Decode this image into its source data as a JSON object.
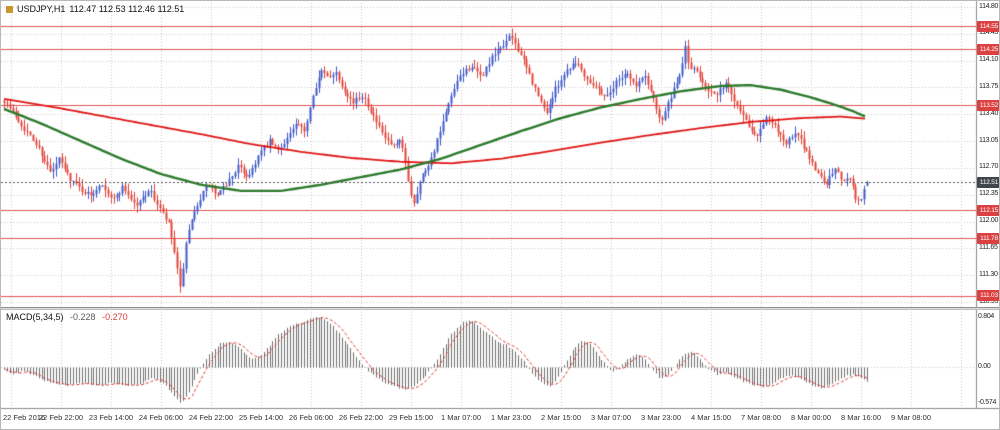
{
  "header": {
    "symbol": "USDJPY,H1",
    "quote": "112.47 112.53 112.46 112.51",
    "icon_color": "#c9962f"
  },
  "indicator": {
    "name": "MACD(5,34,5)",
    "value": "-0.228",
    "signal": "-0.270"
  },
  "colors": {
    "bull": "#3f58c9",
    "bear": "#e0453a",
    "ma_red": "#e01414",
    "ma_green": "#2c7a2c",
    "level_line": "#e05555",
    "level_badge_bg": "#dd4040",
    "current_badge_bg": "#41464c",
    "current_line": "#5a5a5a",
    "grid": "#c9c9c9",
    "hist": "#6e6e6e",
    "signal_line": "#e03a3a",
    "axis_text": "#222222",
    "separator": "#8a8a8a",
    "background": "#ffffff"
  },
  "chart_data": [
    {
      "type": "candlestick",
      "symbol": "USDJPY",
      "timeframe": "H1",
      "current": {
        "open": 112.47,
        "high": 112.53,
        "low": 112.46,
        "close": 112.51
      },
      "current_price": 112.51,
      "y_ticks": [
        114.8,
        114.45,
        114.1,
        113.75,
        113.4,
        113.05,
        112.7,
        112.35,
        112.0,
        111.65,
        111.3,
        110.95
      ],
      "horizontal_levels": [
        114.55,
        114.25,
        113.52,
        112.15,
        111.78,
        111.03
      ],
      "x_tick_labels": [
        "22 Feb 2016",
        "22 Feb 22:00",
        "23 Feb 14:00",
        "24 Feb 06:00",
        "24 Feb 22:00",
        "25 Feb 14:00",
        "26 Feb 06:00",
        "26 Feb 22:00",
        "29 Feb 15:00",
        "1 Mar 07:00",
        "1 Mar 23:00",
        "2 Mar 15:00",
        "3 Mar 07:00",
        "3 Mar 23:00",
        "4 Mar 15:00",
        "7 Mar 08:00",
        "8 Mar 00:00",
        "8 Mar 16:00",
        "9 Mar 08:00"
      ],
      "candle_count": 300,
      "close_path": [
        [
          3,
          113.58
        ],
        [
          12,
          113.42
        ],
        [
          25,
          113.18
        ],
        [
          38,
          112.95
        ],
        [
          50,
          112.62
        ],
        [
          58,
          112.82
        ],
        [
          68,
          112.58
        ],
        [
          80,
          112.42
        ],
        [
          90,
          112.33
        ],
        [
          100,
          112.52
        ],
        [
          112,
          112.28
        ],
        [
          122,
          112.46
        ],
        [
          135,
          112.2
        ],
        [
          148,
          112.42
        ],
        [
          158,
          112.18
        ],
        [
          168,
          111.95
        ],
        [
          174,
          111.55
        ],
        [
          179,
          111.12
        ],
        [
          186,
          111.8
        ],
        [
          196,
          112.22
        ],
        [
          207,
          112.5
        ],
        [
          216,
          112.32
        ],
        [
          227,
          112.52
        ],
        [
          237,
          112.72
        ],
        [
          247,
          112.58
        ],
        [
          258,
          112.88
        ],
        [
          268,
          113.05
        ],
        [
          277,
          112.92
        ],
        [
          287,
          113.12
        ],
        [
          296,
          113.28
        ],
        [
          303,
          113.15
        ],
        [
          312,
          113.68
        ],
        [
          320,
          113.96
        ],
        [
          327,
          113.88
        ],
        [
          334,
          113.97
        ],
        [
          342,
          113.75
        ],
        [
          352,
          113.55
        ],
        [
          362,
          113.66
        ],
        [
          372,
          113.38
        ],
        [
          382,
          113.12
        ],
        [
          392,
          112.96
        ],
        [
          400,
          113.05
        ],
        [
          406,
          112.62
        ],
        [
          412,
          112.22
        ],
        [
          420,
          112.58
        ],
        [
          430,
          112.82
        ],
        [
          440,
          113.22
        ],
        [
          450,
          113.62
        ],
        [
          460,
          113.92
        ],
        [
          470,
          114.03
        ],
        [
          480,
          113.88
        ],
        [
          490,
          114.12
        ],
        [
          500,
          114.28
        ],
        [
          510,
          114.42
        ],
        [
          518,
          114.22
        ],
        [
          528,
          113.92
        ],
        [
          538,
          113.6
        ],
        [
          545,
          113.42
        ],
        [
          555,
          113.75
        ],
        [
          565,
          113.97
        ],
        [
          575,
          114.1
        ],
        [
          585,
          113.88
        ],
        [
          595,
          113.76
        ],
        [
          605,
          113.62
        ],
        [
          615,
          113.82
        ],
        [
          625,
          113.96
        ],
        [
          635,
          113.76
        ],
        [
          643,
          113.92
        ],
        [
          652,
          113.62
        ],
        [
          660,
          113.3
        ],
        [
          668,
          113.58
        ],
        [
          678,
          113.86
        ],
        [
          684,
          114.28
        ],
        [
          688,
          114.02
        ],
        [
          696,
          113.94
        ],
        [
          705,
          113.76
        ],
        [
          715,
          113.62
        ],
        [
          724,
          113.82
        ],
        [
          734,
          113.58
        ],
        [
          745,
          113.32
        ],
        [
          755,
          113.12
        ],
        [
          765,
          113.36
        ],
        [
          775,
          113.22
        ],
        [
          785,
          113.02
        ],
        [
          795,
          113.16
        ],
        [
          805,
          112.92
        ],
        [
          815,
          112.66
        ],
        [
          825,
          112.5
        ],
        [
          835,
          112.7
        ],
        [
          841,
          112.52
        ],
        [
          848,
          112.62
        ],
        [
          854,
          112.32
        ],
        [
          859,
          112.24
        ],
        [
          863,
          112.42
        ],
        [
          866,
          112.51
        ]
      ],
      "ma_red_path": [
        [
          3,
          113.6
        ],
        [
          50,
          113.5
        ],
        [
          100,
          113.38
        ],
        [
          150,
          113.26
        ],
        [
          200,
          113.14
        ],
        [
          250,
          113.01
        ],
        [
          300,
          112.91
        ],
        [
          350,
          112.83
        ],
        [
          400,
          112.78
        ],
        [
          450,
          112.76
        ],
        [
          500,
          112.82
        ],
        [
          550,
          112.92
        ],
        [
          600,
          113.03
        ],
        [
          650,
          113.13
        ],
        [
          700,
          113.22
        ],
        [
          750,
          113.3
        ],
        [
          800,
          113.35
        ],
        [
          840,
          113.37
        ],
        [
          866,
          113.34
        ]
      ],
      "ma_green_path": [
        [
          3,
          113.47
        ],
        [
          40,
          113.28
        ],
        [
          80,
          113.05
        ],
        [
          120,
          112.82
        ],
        [
          160,
          112.62
        ],
        [
          200,
          112.48
        ],
        [
          240,
          112.4
        ],
        [
          280,
          112.4
        ],
        [
          320,
          112.48
        ],
        [
          360,
          112.58
        ],
        [
          400,
          112.68
        ],
        [
          440,
          112.82
        ],
        [
          480,
          113.0
        ],
        [
          520,
          113.18
        ],
        [
          560,
          113.35
        ],
        [
          600,
          113.49
        ],
        [
          640,
          113.6
        ],
        [
          680,
          113.7
        ],
        [
          720,
          113.77
        ],
        [
          750,
          113.78
        ],
        [
          780,
          113.72
        ],
        [
          810,
          113.62
        ],
        [
          835,
          113.52
        ],
        [
          852,
          113.44
        ],
        [
          866,
          113.36
        ]
      ]
    },
    {
      "type": "bar",
      "name": "MACD(5,34,5)",
      "macd_value": -0.228,
      "signal_value": -0.27,
      "y_ticks": [
        {
          "label": "0.804",
          "value": 0.804
        },
        {
          "label": "0.00",
          "value": 0
        },
        {
          "label": "-0.574",
          "value": -0.574
        }
      ],
      "macd_path": [
        [
          3,
          -0.04
        ],
        [
          12,
          -0.12
        ],
        [
          22,
          -0.06
        ],
        [
          35,
          -0.16
        ],
        [
          50,
          -0.26
        ],
        [
          65,
          -0.3
        ],
        [
          80,
          -0.27
        ],
        [
          95,
          -0.3
        ],
        [
          110,
          -0.26
        ],
        [
          125,
          -0.31
        ],
        [
          140,
          -0.27
        ],
        [
          152,
          -0.18
        ],
        [
          163,
          -0.28
        ],
        [
          172,
          -0.45
        ],
        [
          180,
          -0.574
        ],
        [
          188,
          -0.4
        ],
        [
          196,
          -0.12
        ],
        [
          204,
          0.1
        ],
        [
          212,
          0.28
        ],
        [
          220,
          0.38
        ],
        [
          230,
          0.4
        ],
        [
          240,
          0.28
        ],
        [
          250,
          0.12
        ],
        [
          258,
          0.16
        ],
        [
          266,
          0.3
        ],
        [
          276,
          0.5
        ],
        [
          288,
          0.65
        ],
        [
          300,
          0.72
        ],
        [
          312,
          0.78
        ],
        [
          320,
          0.804
        ],
        [
          328,
          0.72
        ],
        [
          338,
          0.55
        ],
        [
          348,
          0.32
        ],
        [
          358,
          0.1
        ],
        [
          366,
          -0.05
        ],
        [
          376,
          -0.18
        ],
        [
          386,
          -0.28
        ],
        [
          396,
          -0.33
        ],
        [
          406,
          -0.36
        ],
        [
          414,
          -0.3
        ],
        [
          424,
          -0.15
        ],
        [
          432,
          0.02
        ],
        [
          440,
          0.25
        ],
        [
          450,
          0.52
        ],
        [
          460,
          0.7
        ],
        [
          468,
          0.76
        ],
        [
          476,
          0.68
        ],
        [
          486,
          0.55
        ],
        [
          496,
          0.42
        ],
        [
          506,
          0.35
        ],
        [
          514,
          0.25
        ],
        [
          522,
          0.1
        ],
        [
          530,
          -0.08
        ],
        [
          540,
          -0.25
        ],
        [
          548,
          -0.33
        ],
        [
          556,
          -0.2
        ],
        [
          564,
          0.05
        ],
        [
          572,
          0.28
        ],
        [
          580,
          0.42
        ],
        [
          588,
          0.38
        ],
        [
          596,
          0.22
        ],
        [
          604,
          0.05
        ],
        [
          612,
          -0.08
        ],
        [
          620,
          0.02
        ],
        [
          628,
          0.15
        ],
        [
          636,
          0.2
        ],
        [
          644,
          0.12
        ],
        [
          652,
          -0.05
        ],
        [
          660,
          -0.2
        ],
        [
          668,
          -0.12
        ],
        [
          676,
          0.08
        ],
        [
          684,
          0.22
        ],
        [
          692,
          0.25
        ],
        [
          700,
          0.1
        ],
        [
          708,
          -0.05
        ],
        [
          716,
          -0.12
        ],
        [
          724,
          -0.08
        ],
        [
          732,
          -0.15
        ],
        [
          740,
          -0.22
        ],
        [
          750,
          -0.28
        ],
        [
          760,
          -0.32
        ],
        [
          770,
          -0.28
        ],
        [
          780,
          -0.18
        ],
        [
          790,
          -0.14
        ],
        [
          800,
          -0.2
        ],
        [
          810,
          -0.28
        ],
        [
          820,
          -0.34
        ],
        [
          828,
          -0.3
        ],
        [
          836,
          -0.22
        ],
        [
          844,
          -0.15
        ],
        [
          852,
          -0.12
        ],
        [
          858,
          -0.16
        ],
        [
          862,
          -0.2
        ],
        [
          866,
          -0.228
        ]
      ]
    }
  ]
}
